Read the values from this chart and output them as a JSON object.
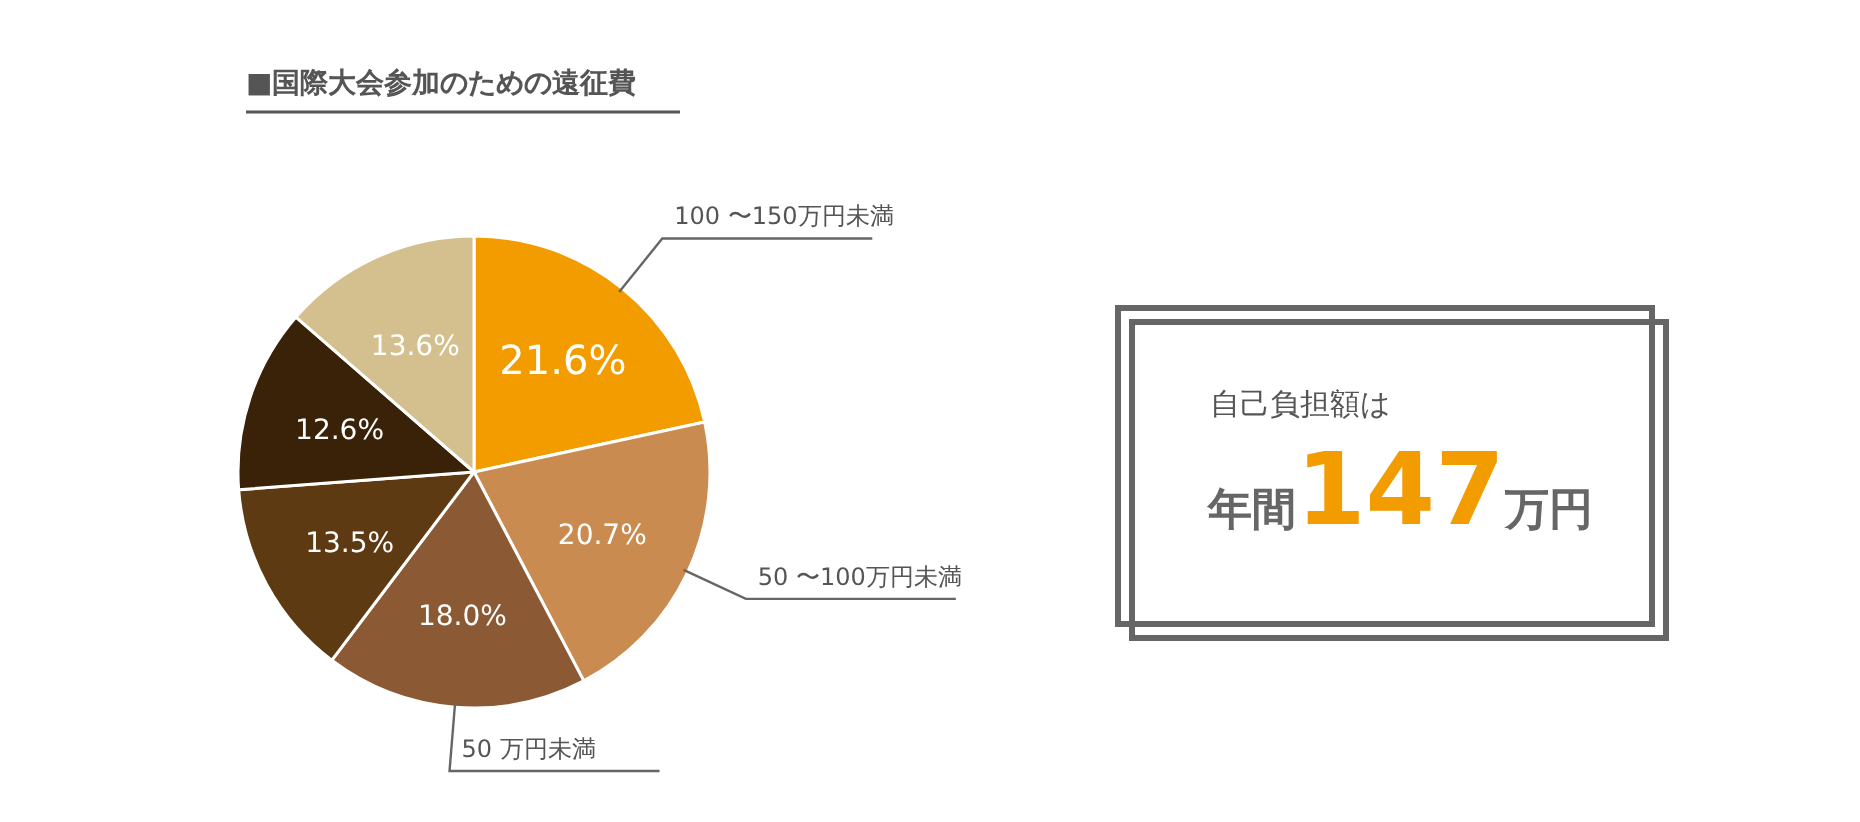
{
  "chart_data": [
    {
      "type": "pie",
      "title": "■国際大会参加のための遠征費",
      "categories": [
        "100 〜150万円未満",
        "50 〜100万円未満",
        "50 万円未満",
        null,
        null,
        null
      ],
      "values": [
        21.6,
        20.7,
        18.0,
        13.5,
        12.6,
        13.6
      ],
      "colors": [
        "#f39c00",
        "#c98b4f",
        "#8b5a35",
        "#5e3a12",
        "#3a2208",
        "#d4c08e"
      ],
      "value_labels": [
        "21.6%",
        "20.7%",
        "18.0%",
        "13.5%",
        "12.6%",
        "13.6%"
      ]
    },
    {
      "type": "other",
      "title": "自己負担額は",
      "annotations": [
        "年間",
        "147",
        "万円"
      ]
    }
  ]
}
